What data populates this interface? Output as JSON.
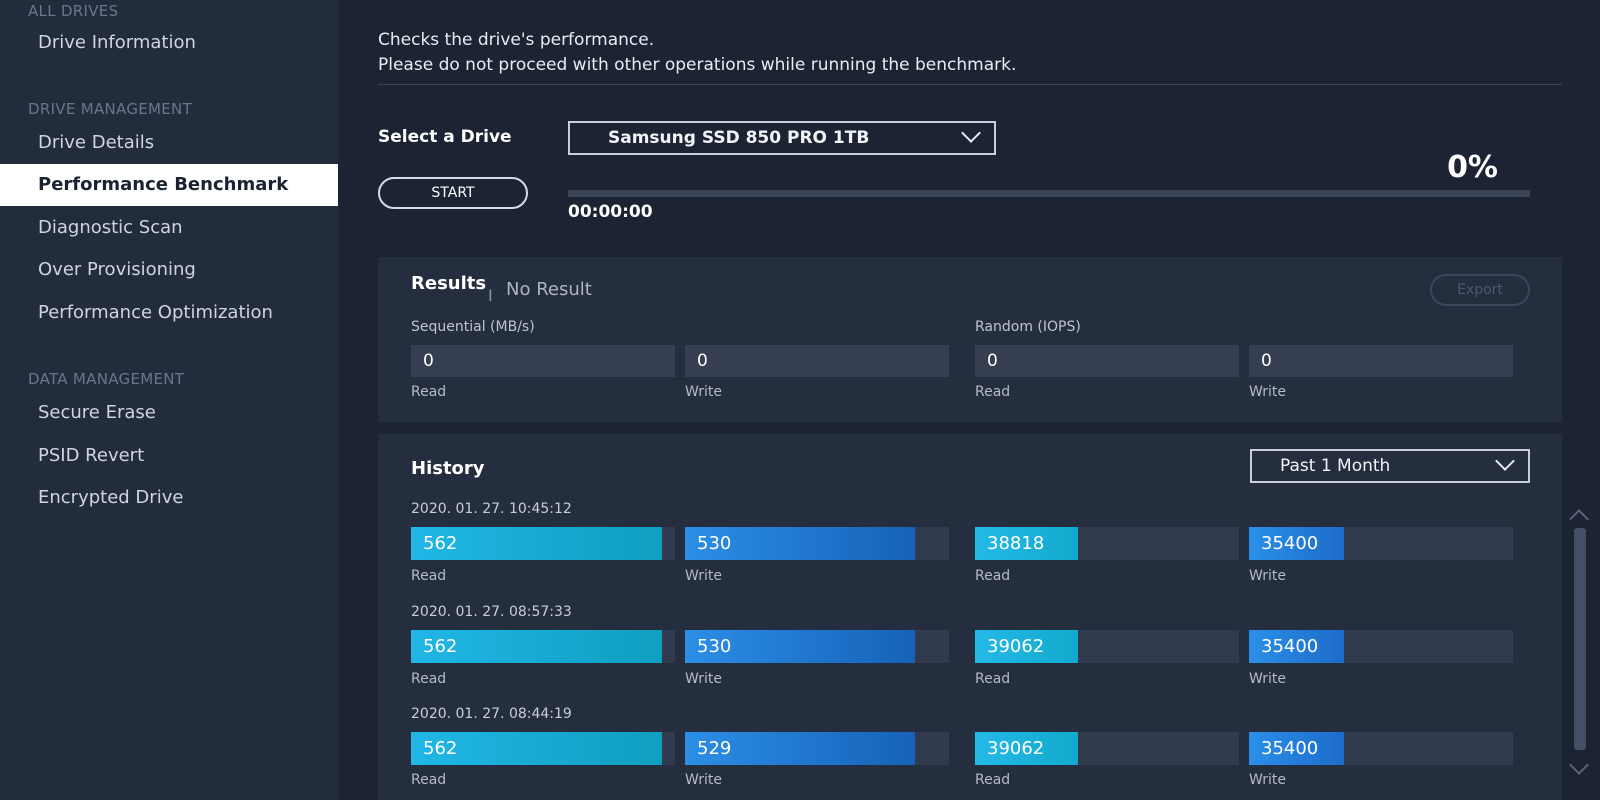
{
  "sidebar": {
    "sections": [
      {
        "title": "ALL DRIVES",
        "items": [
          {
            "label": "Drive Information",
            "active": false
          }
        ]
      },
      {
        "title": "DRIVE MANAGEMENT",
        "items": [
          {
            "label": "Drive Details",
            "active": false
          },
          {
            "label": "Performance Benchmark",
            "active": true
          },
          {
            "label": "Diagnostic Scan",
            "active": false
          },
          {
            "label": "Over Provisioning",
            "active": false
          },
          {
            "label": "Performance Optimization",
            "active": false
          }
        ]
      },
      {
        "title": "DATA MANAGEMENT",
        "items": [
          {
            "label": "Secure Erase",
            "active": false
          },
          {
            "label": "PSID Revert",
            "active": false
          },
          {
            "label": "Encrypted Drive",
            "active": false
          }
        ]
      }
    ]
  },
  "header": {
    "description_line1": "Checks the drive's performance.",
    "description_line2": "Please do not proceed with other operations while running the benchmark."
  },
  "controls": {
    "select_label": "Select a Drive",
    "selected_drive": "Samsung SSD 850 PRO 1TB",
    "start_label": "START",
    "progress_percent": "0%",
    "progress_value": 0,
    "elapsed": "00:00:00"
  },
  "results": {
    "title": "Results",
    "separator": "I",
    "status": "No Result",
    "export_label": "Export",
    "sequential_label": "Sequential (MB/s)",
    "random_label": "Random (IOPS)",
    "seq_read": "0",
    "seq_write": "0",
    "rnd_read": "0",
    "rnd_write": "0",
    "read_label": "Read",
    "write_label": "Write"
  },
  "history": {
    "title": "History",
    "range": "Past 1 Month",
    "read_label": "Read",
    "write_label": "Write",
    "entries": [
      {
        "date": "2020. 01. 27. 10:45:12",
        "seq_read": "562",
        "seq_write": "530",
        "rnd_read": "38818",
        "rnd_write": "35400",
        "seq_read_level": 0.95,
        "seq_write_level": 0.87,
        "rnd_read_level": 0.39,
        "rnd_write_level": 0.36
      },
      {
        "date": "2020. 01. 27. 08:57:33",
        "seq_read": "562",
        "seq_write": "530",
        "rnd_read": "39062",
        "rnd_write": "35400",
        "seq_read_level": 0.95,
        "seq_write_level": 0.87,
        "rnd_read_level": 0.39,
        "rnd_write_level": 0.36
      },
      {
        "date": "2020. 01. 27. 08:44:19",
        "seq_read": "562",
        "seq_write": "529",
        "rnd_read": "39062",
        "rnd_write": "35400",
        "seq_read_level": 0.95,
        "seq_write_level": 0.87,
        "rnd_read_level": 0.39,
        "rnd_write_level": 0.36
      }
    ]
  }
}
